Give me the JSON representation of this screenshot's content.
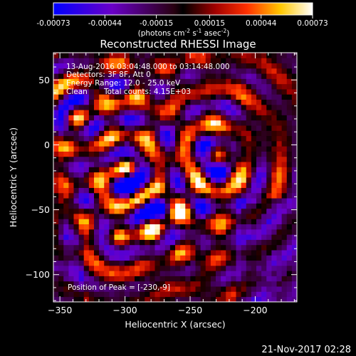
{
  "colorbar": {
    "ticks": [
      "-0.00073",
      "-0.00044",
      "-0.00015",
      "0.00015",
      "0.00044",
      "0.00073"
    ],
    "tick_values": [
      -0.00073,
      -0.00044,
      -0.00015,
      0.00015,
      0.00044,
      0.00073
    ],
    "range": [
      -0.00073,
      0.00073
    ],
    "stops": [
      {
        "v": -0.00073,
        "color": "#0000ff"
      },
      {
        "v": -0.0004,
        "color": "#6a00c8"
      },
      {
        "v": -5e-05,
        "color": "#280010"
      },
      {
        "v": 0.0,
        "color": "#000000"
      },
      {
        "v": 0.00018,
        "color": "#a00000"
      },
      {
        "v": 0.00036,
        "color": "#ff3000"
      },
      {
        "v": 0.00055,
        "color": "#ffc800"
      },
      {
        "v": 0.00073,
        "color": "#ffffff"
      }
    ]
  },
  "units_prefix": "(photons cm",
  "units_exp1": "-2",
  "units_mid": " s",
  "units_exp2": "-1",
  "units_mid2": " asec",
  "units_exp3": "-2",
  "units_suffix": ")",
  "chart_data": {
    "type": "heatmap",
    "title": "Reconstructed RHESSI Image",
    "xlabel": "Heliocentric X (arcsec)",
    "ylabel": "Heliocentric Y (arcsec)",
    "xlim": [
      -355,
      -168
    ],
    "ylim": [
      -121,
      71
    ],
    "xticks": [
      -350,
      -300,
      -250,
      -200
    ],
    "yticks": [
      50,
      0,
      -50,
      -100
    ],
    "xtick_labels": [
      "−350",
      "−300",
      "−250",
      "−200"
    ],
    "ytick_labels": [
      "50",
      "0",
      "−50",
      "−100"
    ],
    "grid": false,
    "colormap": "RHESSI red-temperature / blue diverging",
    "peak_position": [
      -230,
      -9
    ],
    "sources": [
      {
        "x": -230,
        "y": -9,
        "value": 0.00073
      },
      {
        "x": -297,
        "y": -20,
        "value": 0.00065
      },
      {
        "x": -288,
        "y": -40,
        "value": 0.00045
      },
      {
        "x": -338,
        "y": 22,
        "value": 0.0005
      },
      {
        "x": -278,
        "y": -60,
        "value": 0.00035
      },
      {
        "x": -306,
        "y": -72,
        "value": 0.0003
      }
    ]
  },
  "annotations": {
    "time": "13-Aug-2016 03:04:48.000 to 03:14:48.000",
    "detectors": "Detectors: 3F 8F, Att 0",
    "energy": "Energy Range: 12.0 - 25.0 keV",
    "clean": "Clean",
    "counts": "Total counts: 4.15E+03",
    "peak": "Position of Peak = [-230,-9]"
  },
  "footer": {
    "date": "21-Nov-2017 02:28"
  }
}
